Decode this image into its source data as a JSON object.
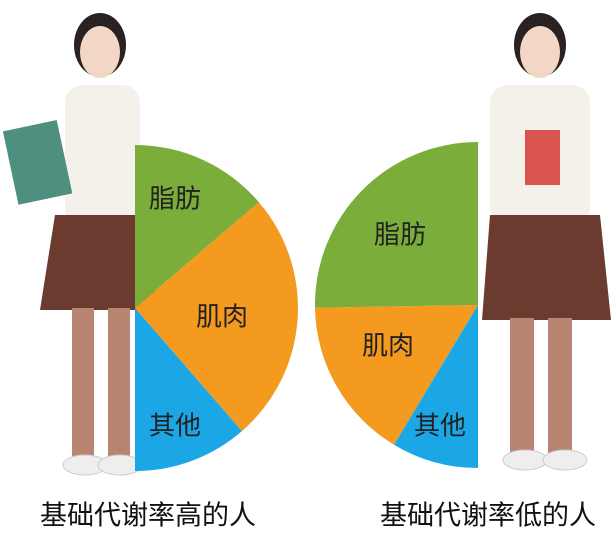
{
  "left": {
    "slices": [
      "脂肪",
      "肌肉",
      "其他"
    ],
    "caption": "基础代谢率高的人"
  },
  "right": {
    "slices": [
      "脂肪",
      "肌肉",
      "其他"
    ],
    "caption": "基础代谢率低的人"
  }
}
